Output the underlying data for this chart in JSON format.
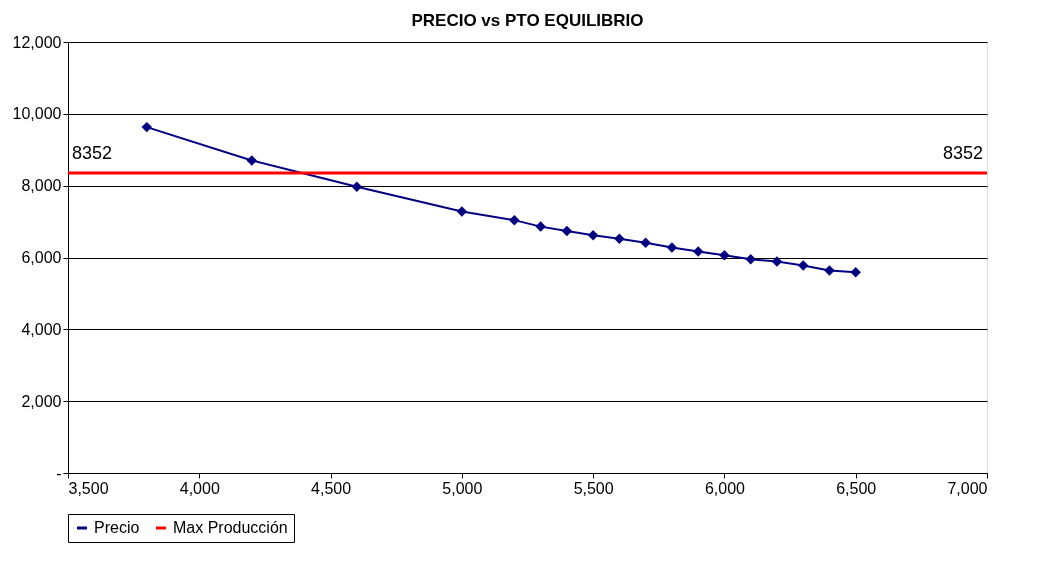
{
  "chart_data": {
    "type": "line",
    "title": "PRECIO vs PTO EQUILIBRIO",
    "x": [
      3800,
      4200,
      4600,
      5000,
      5200,
      5300,
      5400,
      5500,
      5600,
      5700,
      5800,
      5900,
      6000,
      6100,
      6200,
      6300,
      6400,
      6500
    ],
    "series": [
      {
        "name": "Precio",
        "color": "#000080",
        "marker": "diamond",
        "values": [
          9630,
          8700,
          7970,
          7280,
          7040,
          6860,
          6740,
          6620,
          6520,
          6410,
          6280,
          6170,
          6060,
          5950,
          5890,
          5780,
          5640,
          5590
        ]
      },
      {
        "name": "Max Producción",
        "color": "#ff0000",
        "marker": "none",
        "x": [
          3500,
          7000
        ],
        "values": [
          8352,
          8352
        ],
        "value_labels": [
          "8352",
          "8352"
        ]
      }
    ],
    "xlim": [
      3500,
      7000
    ],
    "xticks": [
      {
        "value": 3500,
        "label": "3,500"
      },
      {
        "value": 4000,
        "label": "4,000"
      },
      {
        "value": 4500,
        "label": "4,500"
      },
      {
        "value": 5000,
        "label": "5,000"
      },
      {
        "value": 5500,
        "label": "5,500"
      },
      {
        "value": 6000,
        "label": "6,000"
      },
      {
        "value": 6500,
        "label": "6,500"
      },
      {
        "value": 7000,
        "label": "7,000"
      }
    ],
    "ylim": [
      0,
      12000
    ],
    "yticks": [
      {
        "value": 0,
        "label": "-"
      },
      {
        "value": 2000,
        "label": "2,000"
      },
      {
        "value": 4000,
        "label": "4,000"
      },
      {
        "value": 6000,
        "label": "6,000"
      },
      {
        "value": 8000,
        "label": "8,000"
      },
      {
        "value": 10000,
        "label": "10,000"
      },
      {
        "value": 12000,
        "label": "12,000"
      }
    ],
    "grid": "y",
    "legend": "bottom"
  }
}
